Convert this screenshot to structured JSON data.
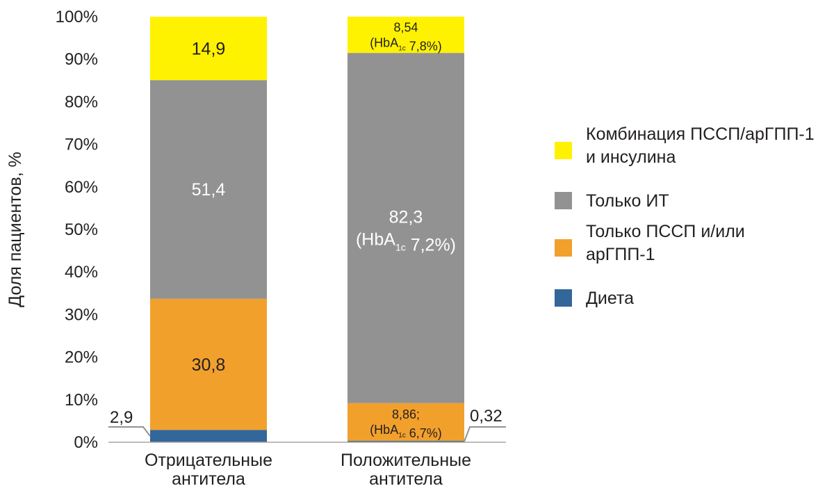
{
  "chart_data": {
    "type": "bar",
    "stacked": true,
    "title": "",
    "ylabel": "Доля пациентов, %",
    "ylim": [
      0,
      100
    ],
    "yticks": [
      "0%",
      "10%",
      "20%",
      "30%",
      "40%",
      "50%",
      "60%",
      "70%",
      "80%",
      "90%",
      "100%"
    ],
    "categories": [
      [
        "Отрицательные",
        "антитела"
      ],
      [
        "Положительные",
        "антитела"
      ]
    ],
    "series": [
      {
        "name": "Диета",
        "color": "#336699",
        "values": [
          2.9,
          0.32
        ]
      },
      {
        "name": "Только ПССП и/или арГПП-1",
        "color": "#f2a02c",
        "values": [
          30.8,
          8.86
        ]
      },
      {
        "name": "Только ИТ",
        "color": "#929292",
        "values": [
          51.4,
          82.3
        ]
      },
      {
        "name": "Комбинация ПССП/арГПП-1 и инсулина",
        "color": "#fff200",
        "values": [
          14.9,
          8.54
        ]
      }
    ],
    "legend": {
      "placement": "right",
      "order": [
        3,
        2,
        1,
        0
      ],
      "entries": [
        [
          "Комбинация ПССП/арГПП-1",
          "и инсулина"
        ],
        [
          "Только ИТ"
        ],
        [
          "Только ПССП и/или",
          "арГПП-1"
        ],
        [
          "Диета"
        ]
      ]
    },
    "segment_labels": [
      [
        null,
        {
          "lines": [
            "30,8"
          ]
        },
        {
          "lines": [
            "51,4"
          ],
          "light": true
        },
        {
          "lines": [
            "14,9"
          ]
        }
      ],
      [
        null,
        {
          "lines": [
            "8,86;",
            "(HbA|1c| 6,7%)"
          ],
          "small": true
        },
        {
          "lines": [
            "82,3",
            "(HbA|1c| 7,2%)"
          ],
          "light": true
        },
        {
          "lines": [
            "8,54",
            "(HbA|1c| 7,8%)"
          ],
          "small": true
        }
      ]
    ],
    "callouts": [
      {
        "text": "2,9",
        "category": 0,
        "side": "left"
      },
      {
        "text": "0,32",
        "category": 1,
        "side": "right"
      }
    ],
    "grid": false
  }
}
